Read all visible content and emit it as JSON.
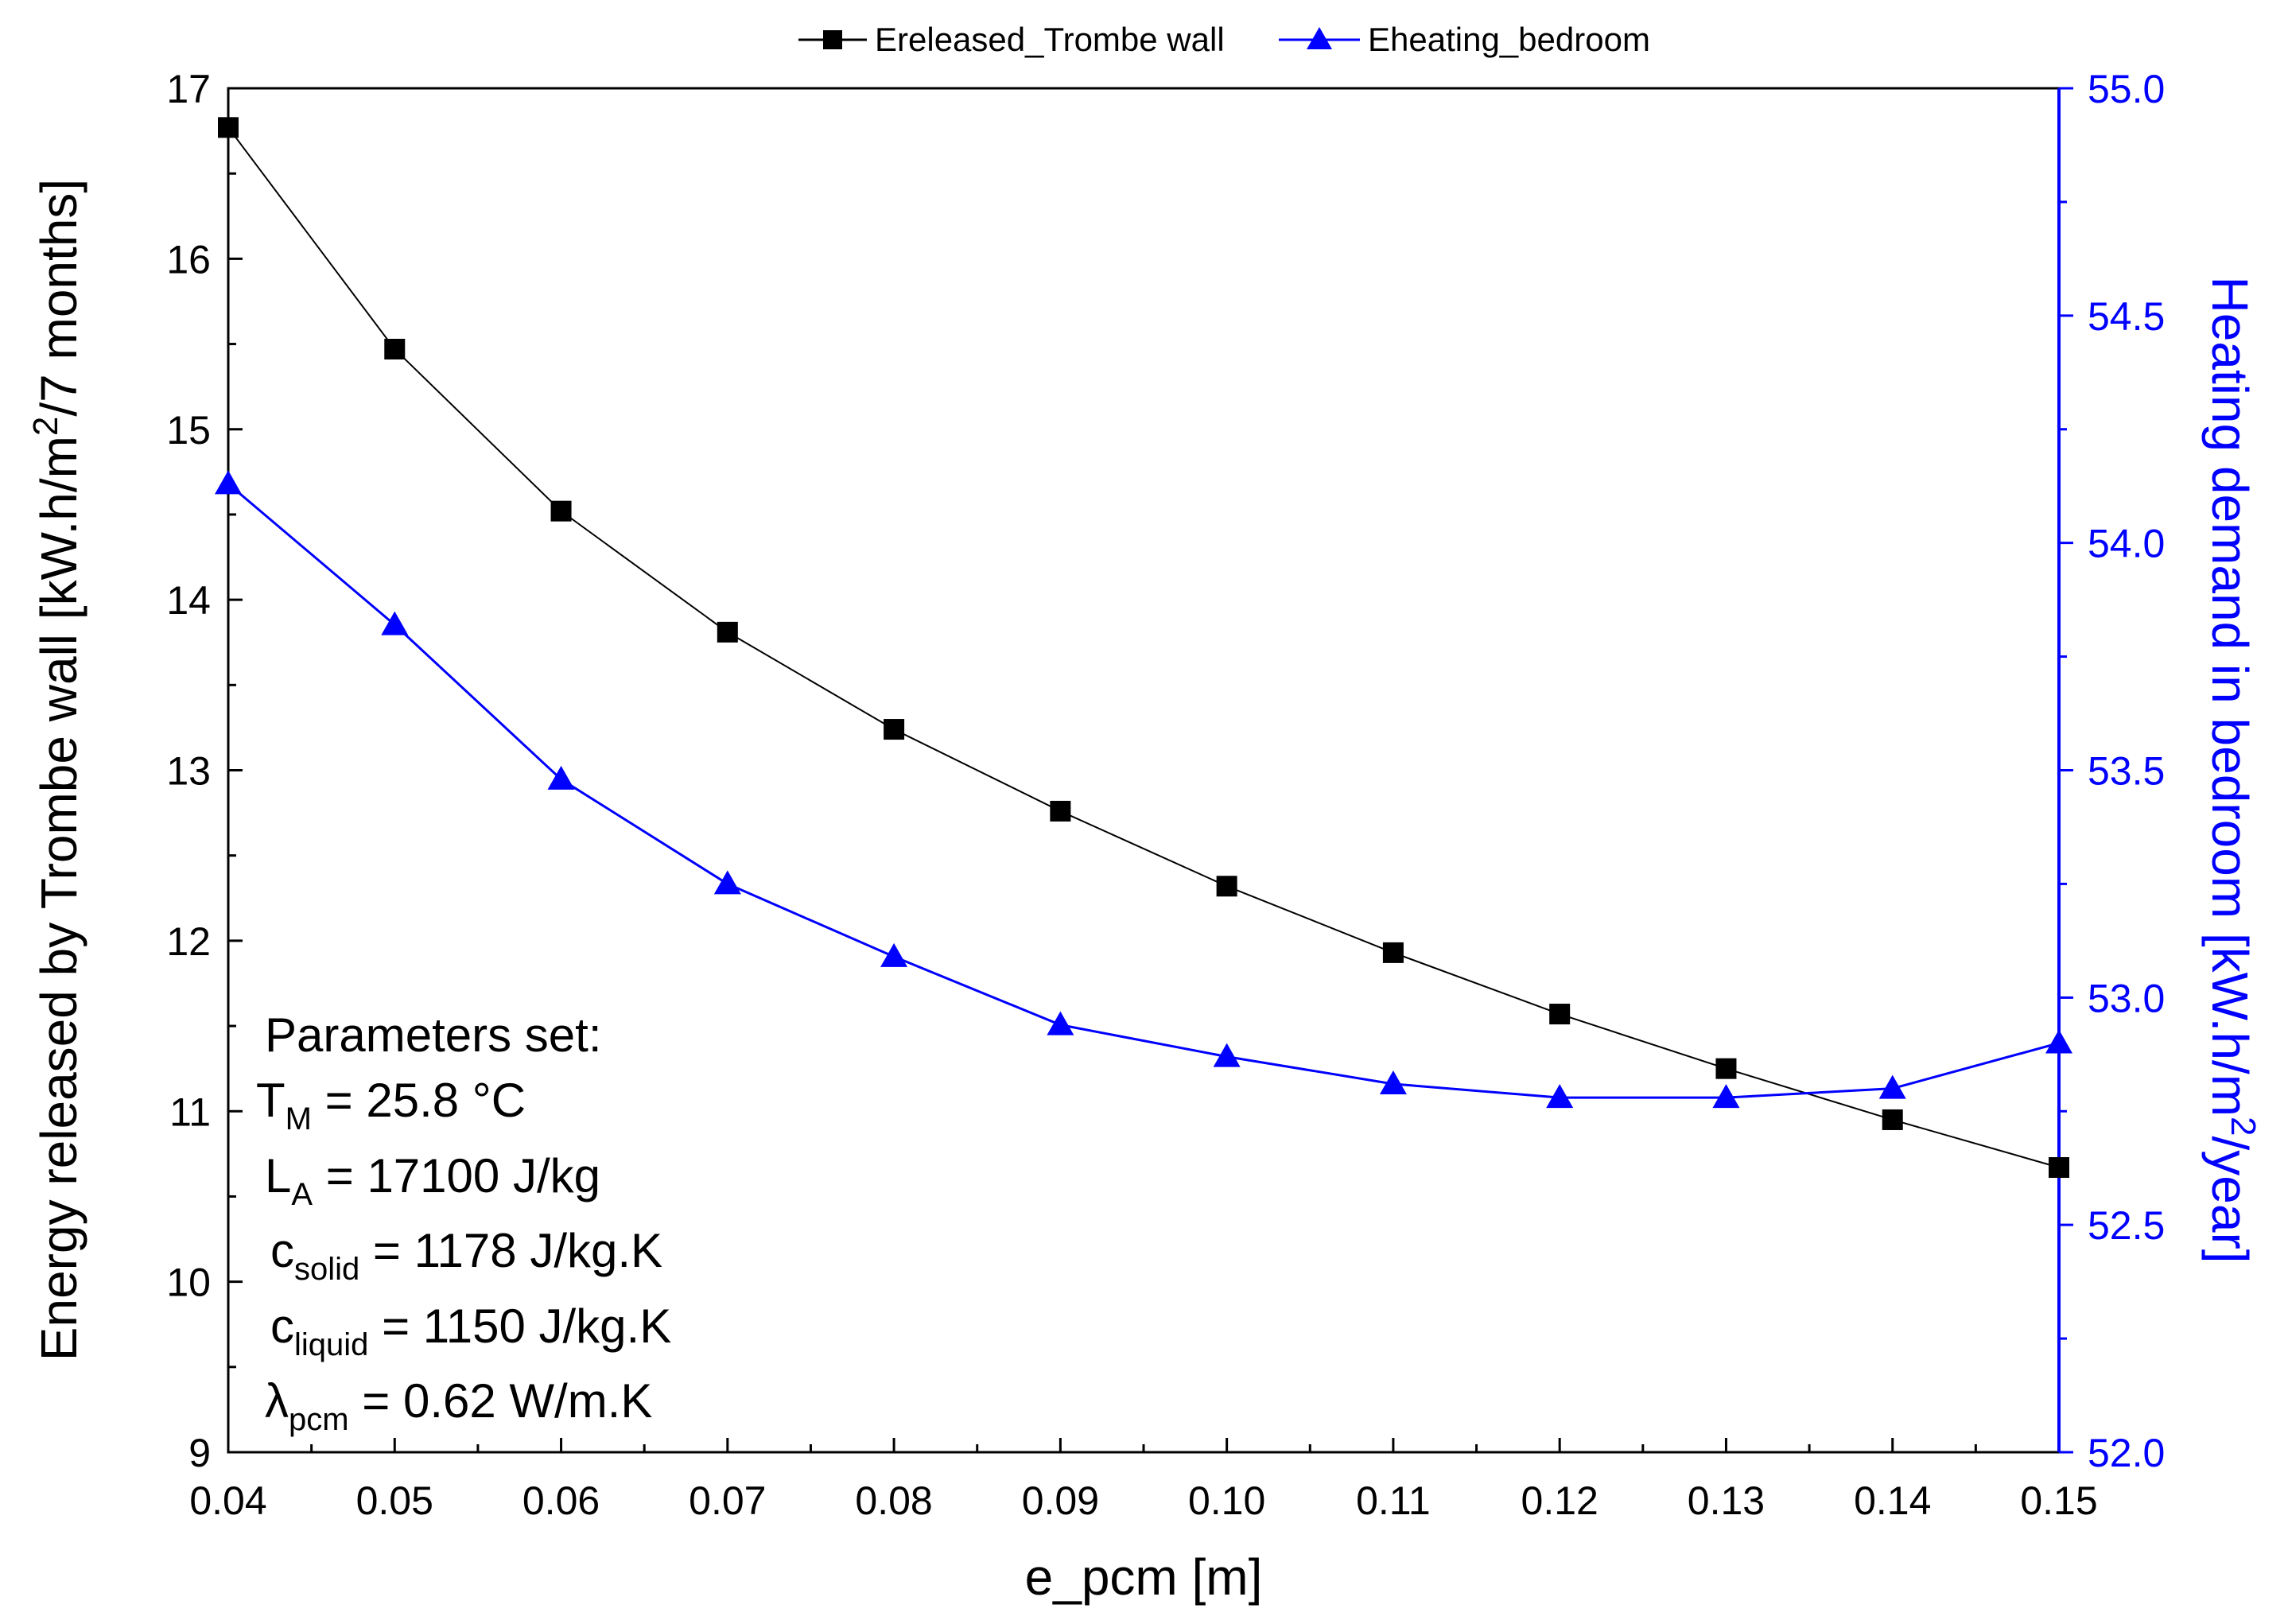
{
  "chart_data": {
    "type": "line",
    "title": "",
    "xlabel": "e_pcm [m]",
    "ylabel_left": {
      "main": "Energy released by Trombe wall [kW.h/m",
      "sup": "2",
      "tail": "/7 months]"
    },
    "ylabel_right": {
      "main": "Heating demand in bedroom [kW.h/m",
      "sup": "2",
      "tail": "/year]"
    },
    "xlim": [
      0.04,
      0.15
    ],
    "ylim_left": [
      9,
      17
    ],
    "ylim_right": [
      52.0,
      55.0
    ],
    "x_ticks": [
      "0.04",
      "0.05",
      "0.06",
      "0.07",
      "0.08",
      "0.09",
      "0.10",
      "0.11",
      "0.12",
      "0.13",
      "0.14",
      "0.15"
    ],
    "y_left_ticks": [
      "9",
      "10",
      "11",
      "12",
      "13",
      "14",
      "15",
      "16",
      "17"
    ],
    "y_right_ticks": [
      "52.0",
      "52.5",
      "53.0",
      "53.5",
      "54.0",
      "54.5",
      "55.0"
    ],
    "x": [
      0.04,
      0.05,
      0.06,
      0.07,
      0.08,
      0.09,
      0.1,
      0.11,
      0.12,
      0.13,
      0.14,
      0.15
    ],
    "series": [
      {
        "name": "Ereleased_Trombe wall",
        "axis": "left",
        "color": "#000000",
        "marker": "square",
        "values": [
          16.77,
          15.47,
          14.52,
          13.81,
          13.24,
          12.76,
          12.32,
          11.93,
          11.57,
          11.25,
          10.95,
          10.67
        ]
      },
      {
        "name": "Eheating_bedroom",
        "axis": "right",
        "color": "#0000ff",
        "marker": "triangle",
        "values": [
          54.13,
          53.82,
          53.48,
          53.25,
          53.09,
          52.94,
          52.87,
          52.81,
          52.78,
          52.78,
          52.8,
          52.9
        ]
      }
    ],
    "annotation": {
      "heading": "Parameters set:",
      "lines": [
        {
          "sym": "T",
          "sub": "M",
          "text": " = 25.8 °C"
        },
        {
          "sym": "L",
          "sub": "A",
          "text": " = 17100 J/kg"
        },
        {
          "sym": "c",
          "sub": "solid",
          "text": " = 1178 J/kg.K"
        },
        {
          "sym": "c",
          "sub": "liquid",
          "text": " = 1150 J/kg.K"
        },
        {
          "sym": "λ",
          "sub": "pcm",
          "text": " = 0.62 W/m.K"
        }
      ]
    },
    "legend_position": "top-center"
  }
}
